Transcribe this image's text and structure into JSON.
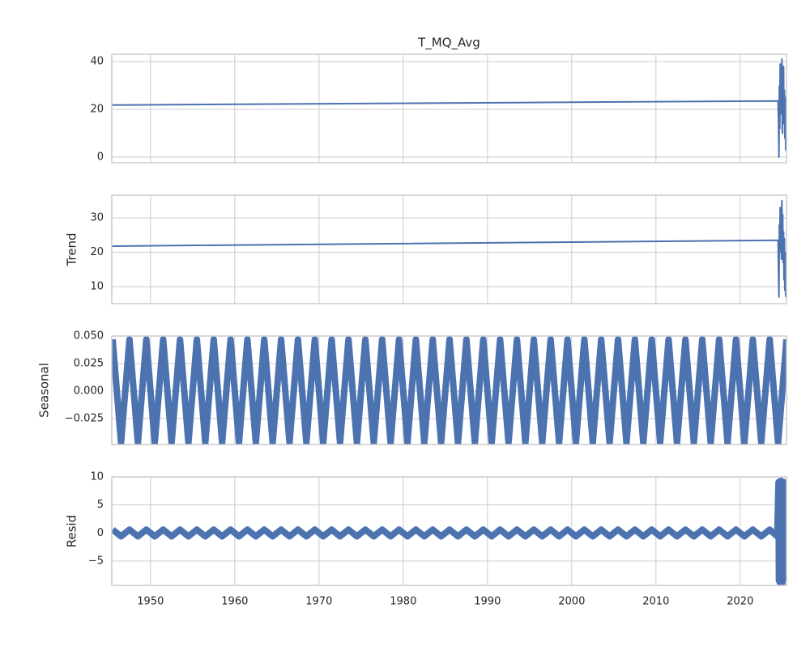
{
  "chart_data": [
    {
      "type": "line",
      "title": "T_MQ_Avg",
      "xlim": [
        1945.4,
        2025.5
      ],
      "xticks": [
        1950,
        1960,
        1970,
        1980,
        1990,
        2000,
        2010,
        2020
      ],
      "ylim": [
        -2.4,
        43.1
      ],
      "yticks": [
        0,
        20,
        40
      ],
      "grid": true,
      "color": "#4c72b0",
      "x": [
        1945.4,
        2024.5,
        2024.55,
        2024.6,
        2024.65,
        2024.7,
        2024.75,
        2024.8,
        2024.85,
        2024.9,
        2024.95,
        2025.0,
        2025.05,
        2025.1,
        2025.15,
        2025.2,
        2025.25,
        2025.3,
        2025.35,
        2025.4,
        2025.45
      ],
      "values": [
        21.8,
        23.5,
        15,
        0,
        30,
        12,
        39,
        18,
        35,
        22,
        41,
        10,
        33,
        20,
        38,
        14,
        28,
        8,
        25,
        3,
        20
      ]
    },
    {
      "type": "line",
      "ylabel": "Trend",
      "xlim": [
        1945.4,
        2025.5
      ],
      "xticks": [
        1950,
        1960,
        1970,
        1980,
        1990,
        2000,
        2010,
        2020
      ],
      "ylim": [
        5.1,
        36.6
      ],
      "yticks": [
        10,
        20,
        30
      ],
      "grid": true,
      "color": "#4c72b0",
      "x": [
        1945.4,
        2024.5,
        2024.55,
        2024.6,
        2024.65,
        2024.7,
        2024.75,
        2024.8,
        2024.85,
        2024.9,
        2024.95,
        2025.0,
        2025.05,
        2025.1,
        2025.15,
        2025.2,
        2025.25,
        2025.3,
        2025.35,
        2025.4
      ],
      "values": [
        21.8,
        23.5,
        15,
        7,
        28,
        20,
        33,
        22,
        30,
        18,
        35,
        21,
        31,
        17,
        26,
        12,
        24,
        9,
        20,
        7
      ]
    },
    {
      "type": "line",
      "ylabel": "Seasonal",
      "xlim": [
        1945.4,
        2025.5
      ],
      "xticks": [
        1950,
        1960,
        1970,
        1980,
        1990,
        2000,
        2010,
        2020
      ],
      "ylim": [
        -0.0485,
        0.05
      ],
      "yticks": [
        {
          "value": 0.05,
          "label": "0.050"
        },
        {
          "value": 0.025,
          "label": "0.025"
        },
        {
          "value": 0,
          "label": "0.000"
        },
        {
          "value": -0.025,
          "label": "−0.025"
        }
      ],
      "grid": true,
      "color": "#4c72b0",
      "x": [
        1945.5,
        1946.5,
        1947.5,
        1948.5,
        1949.5,
        1950.5,
        1951.5,
        1952.5,
        1953.5,
        1954.5,
        1955.5,
        1956.5,
        1957.5,
        1958.5,
        1959.5,
        1960.5,
        1961.5,
        1962.5,
        1963.5,
        1964.5,
        1965.5,
        1966.5,
        1967.5,
        1968.5,
        1969.5,
        1970.5,
        1971.5,
        1972.5,
        1973.5,
        1974.5,
        1975.5,
        1976.5,
        1977.5,
        1978.5,
        1979.5,
        1980.5,
        1981.5,
        1982.5,
        1983.5,
        1984.5,
        1985.5,
        1986.5,
        1987.5,
        1988.5,
        1989.5,
        1990.5,
        1991.5,
        1992.5,
        1993.5,
        1994.5,
        1995.5,
        1996.5,
        1997.5,
        1998.5,
        1999.5,
        2000.5,
        2001.5,
        2002.5,
        2003.5,
        2004.5,
        2005.5,
        2006.5,
        2007.5,
        2008.5,
        2009.5,
        2010.5,
        2011.5,
        2012.5,
        2013.5,
        2014.5,
        2015.5,
        2016.5,
        2017.5,
        2018.5,
        2019.5,
        2020.5,
        2021.5,
        2022.5,
        2023.5,
        2024.5,
        2025.5
      ],
      "values": [
        0.047,
        -0.047,
        0.047,
        -0.047,
        0.047,
        -0.047,
        0.047,
        -0.047,
        0.047,
        -0.047,
        0.047,
        -0.047,
        0.047,
        -0.047,
        0.047,
        -0.047,
        0.047,
        -0.047,
        0.047,
        -0.047,
        0.047,
        -0.047,
        0.047,
        -0.047,
        0.047,
        -0.047,
        0.047,
        -0.047,
        0.047,
        -0.047,
        0.047,
        -0.047,
        0.047,
        -0.047,
        0.047,
        -0.047,
        0.047,
        -0.047,
        0.047,
        -0.047,
        0.047,
        -0.047,
        0.047,
        -0.047,
        0.047,
        -0.047,
        0.047,
        -0.047,
        0.047,
        -0.047,
        0.047,
        -0.047,
        0.047,
        -0.047,
        0.047,
        -0.047,
        0.047,
        -0.047,
        0.047,
        -0.047,
        0.047,
        -0.047,
        0.047,
        -0.047,
        0.047,
        -0.047,
        0.047,
        -0.047,
        0.047,
        -0.047,
        0.047,
        -0.047,
        0.047,
        -0.047,
        0.047,
        -0.047,
        0.047,
        -0.047,
        0.047,
        -0.047,
        0.047
      ]
    },
    {
      "type": "line",
      "ylabel": "Resid",
      "xlim": [
        1945.4,
        2025.5
      ],
      "xticks": [
        1950,
        1960,
        1970,
        1980,
        1990,
        2000,
        2010,
        2020
      ],
      "ylim": [
        -9.35,
        10
      ],
      "yticks": [
        10,
        5,
        0,
        {
          "value": -5,
          "label": "−5"
        }
      ],
      "grid": true,
      "color": "#4c72b0",
      "x": [
        1945.5,
        1946.5,
        1947.5,
        1948.5,
        1949.5,
        1950.5,
        1951.5,
        1952.5,
        1953.5,
        1954.5,
        1955.5,
        1956.5,
        1957.5,
        1958.5,
        1959.5,
        1960.5,
        1961.5,
        1962.5,
        1963.5,
        1964.5,
        1965.5,
        1966.5,
        1967.5,
        1968.5,
        1969.5,
        1970.5,
        1971.5,
        1972.5,
        1973.5,
        1974.5,
        1975.5,
        1976.5,
        1977.5,
        1978.5,
        1979.5,
        1980.5,
        1981.5,
        1982.5,
        1983.5,
        1984.5,
        1985.5,
        1986.5,
        1987.5,
        1988.5,
        1989.5,
        1990.5,
        1991.5,
        1992.5,
        1993.5,
        1994.5,
        1995.5,
        1996.5,
        1997.5,
        1998.5,
        1999.5,
        2000.5,
        2001.5,
        2002.5,
        2003.5,
        2004.5,
        2005.5,
        2006.5,
        2007.5,
        2008.5,
        2009.5,
        2010.5,
        2011.5,
        2012.5,
        2013.5,
        2014.5,
        2015.5,
        2016.5,
        2017.5,
        2018.5,
        2019.5,
        2020.5,
        2021.5,
        2022.5,
        2023.5,
        2024.4,
        2024.55,
        2024.6,
        2024.65,
        2024.7,
        2024.75,
        2024.8,
        2024.85,
        2024.9,
        2024.95,
        2025.0,
        2025.05,
        2025.1,
        2025.15,
        2025.2,
        2025.25,
        2025.3,
        2025.35,
        2025.4
      ],
      "values": [
        0.6,
        -0.6,
        0.6,
        -0.6,
        0.6,
        -0.6,
        0.6,
        -0.6,
        0.6,
        -0.6,
        0.6,
        -0.6,
        0.6,
        -0.6,
        0.6,
        -0.6,
        0.6,
        -0.6,
        0.6,
        -0.6,
        0.6,
        -0.6,
        0.6,
        -0.6,
        0.6,
        -0.6,
        0.6,
        -0.6,
        0.6,
        -0.6,
        0.6,
        -0.6,
        0.6,
        -0.6,
        0.6,
        -0.6,
        0.6,
        -0.6,
        0.6,
        -0.6,
        0.6,
        -0.6,
        0.6,
        -0.6,
        0.6,
        -0.6,
        0.6,
        -0.6,
        0.6,
        -0.6,
        0.6,
        -0.6,
        0.6,
        -0.6,
        0.6,
        -0.6,
        0.6,
        -0.6,
        0.6,
        -0.6,
        0.6,
        -0.6,
        0.6,
        -0.6,
        0.6,
        -0.6,
        0.6,
        -0.6,
        0.6,
        -0.6,
        0.6,
        -0.6,
        0.6,
        -0.6,
        0.6,
        -0.6,
        0.6,
        -0.6,
        0.6,
        -0.6,
        9,
        -8.5,
        9.2,
        -8.8,
        8.8,
        -9,
        9.3,
        -8.6,
        9,
        -8.9,
        8.7,
        -8.4,
        9.1,
        -8.2,
        8.5,
        -8,
        7.8,
        -7.5
      ]
    }
  ]
}
